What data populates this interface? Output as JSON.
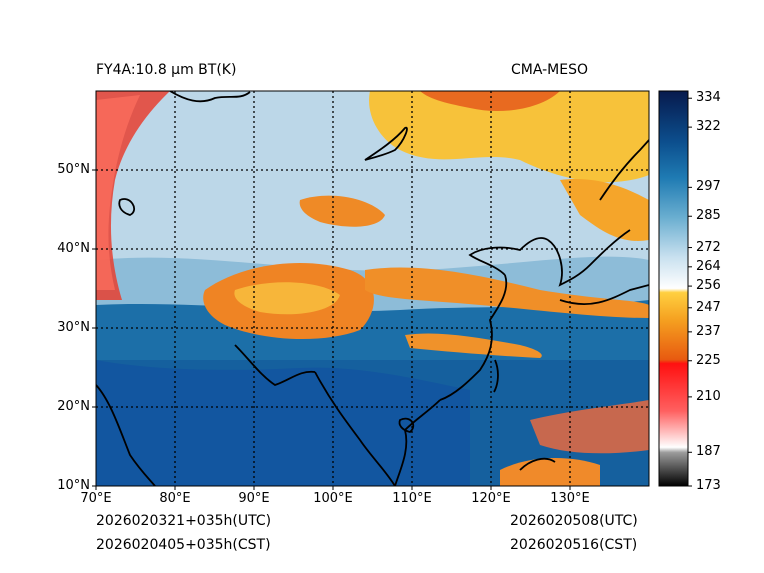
{
  "title": "FY4A:10.8 µm BT(K)",
  "source": "CMA-MESO",
  "init_utc": "2026020321+035h(UTC)",
  "init_cst": "2026020405+035h(CST)",
  "valid_utc": "2026020508(UTC)",
  "valid_cst": "2026020516(CST)",
  "lat_labels": [
    "50°N",
    "40°N",
    "30°N",
    "20°N",
    "10°N"
  ],
  "lat_values": [
    50,
    40,
    30,
    20,
    10
  ],
  "lon_labels": [
    "70°E",
    "80°E",
    "90°E",
    "100°E",
    "110°E",
    "120°E",
    "130°E"
  ],
  "lon_values": [
    70,
    80,
    90,
    100,
    110,
    120,
    130
  ],
  "extent": {
    "lon_min": 70,
    "lon_max": 140,
    "lat_min": 10,
    "lat_max": 60
  },
  "colorbar": {
    "ticks": [
      334,
      322,
      297,
      285,
      272,
      264,
      256,
      247,
      237,
      225,
      210,
      187,
      173
    ],
    "min": 173,
    "max": 337
  }
}
